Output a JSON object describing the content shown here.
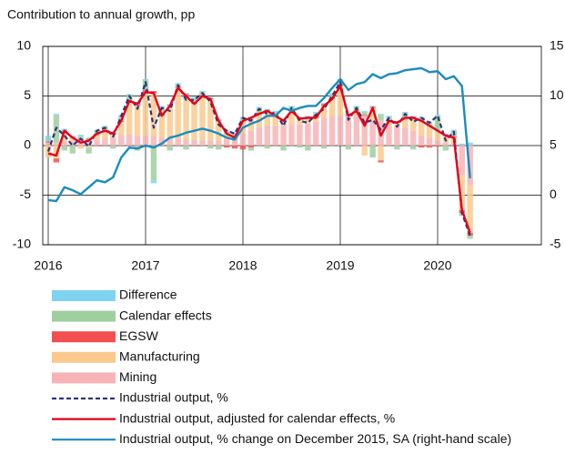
{
  "chart_data": {
    "type": "bar",
    "title": "Contribution to annual growth, pp",
    "categories": [
      "2016",
      null,
      null,
      null,
      null,
      null,
      null,
      null,
      null,
      null,
      null,
      null,
      "2017",
      null,
      null,
      null,
      null,
      null,
      null,
      null,
      null,
      null,
      null,
      null,
      "2018",
      null,
      null,
      null,
      null,
      null,
      null,
      null,
      null,
      null,
      null,
      null,
      "2019",
      null,
      null,
      null,
      null,
      null,
      null,
      null,
      null,
      null,
      null,
      null,
      "2020",
      null,
      null,
      null,
      null,
      null,
      null,
      null,
      null,
      null,
      null,
      null
    ],
    "ylim": [
      -10,
      10
    ],
    "yticks": [
      -10,
      -5,
      0,
      5,
      10
    ],
    "y2lim": [
      -5,
      15
    ],
    "y2ticks": [
      -5,
      0,
      5,
      10,
      15
    ],
    "grid": true,
    "series": [
      {
        "name": "Difference",
        "type": "bar",
        "color": "#7fd3f0",
        "values": [
          0.4,
          0.1,
          0.2,
          0.1,
          0.1,
          0.1,
          0.1,
          0.1,
          0.1,
          0.1,
          0.1,
          0.2,
          0.1,
          -0.3,
          0.1,
          0.1,
          0.1,
          0.1,
          0.1,
          0.1,
          0.1,
          0.1,
          0.1,
          0.1,
          0.1,
          0.1,
          0.1,
          0.1,
          0.1,
          0.1,
          0.1,
          0.1,
          0.1,
          0.1,
          0.1,
          0.1,
          0.1,
          0.1,
          0.1,
          0.1,
          0.1,
          0.1,
          0.1,
          0.1,
          0.1,
          0.1,
          0.1,
          0.1,
          0.1,
          0.1,
          0.1,
          0.2,
          0.3,
          null,
          null,
          null,
          null,
          null,
          null,
          null
        ]
      },
      {
        "name": "Calendar effects",
        "type": "bar",
        "color": "#9fcf9f",
        "values": [
          0.2,
          2.8,
          -0.5,
          -0.8,
          0.4,
          -0.6,
          0.3,
          0.3,
          -0.3,
          0.5,
          0.5,
          -0.5,
          1.0,
          -3.5,
          0.8,
          -0.5,
          0.3,
          -0.4,
          0.4,
          0.3,
          -0.3,
          -0.4,
          0.3,
          0.4,
          0.3,
          -0.3,
          0.5,
          -0.3,
          0.3,
          -0.5,
          0.3,
          -0.2,
          -0.5,
          0.3,
          -0.3,
          0.3,
          0.4,
          -0.4,
          0.3,
          0.3,
          -1.2,
          0.6,
          0.3,
          -0.4,
          0.4,
          -0.4,
          0.3,
          0.3,
          1.5,
          -0.5,
          0.6,
          -0.3,
          -0.3,
          null,
          null,
          null,
          null,
          null,
          null,
          null
        ]
      },
      {
        "name": "EGSW",
        "type": "bar",
        "color": "#f25050",
        "values": [
          0.1,
          -0.4,
          0.1,
          0.1,
          0.1,
          0.1,
          0.1,
          0.2,
          0.2,
          0.1,
          0.2,
          0.2,
          0.2,
          0.2,
          0.1,
          0.1,
          0.1,
          0.2,
          0.2,
          0.1,
          0.1,
          0.1,
          -0.2,
          -0.3,
          -0.4,
          -0.2,
          0.1,
          0.1,
          0.1,
          0.1,
          0.1,
          0.1,
          0.1,
          0.2,
          0.2,
          0.2,
          0.2,
          0.1,
          0.1,
          0.1,
          0.1,
          -0.2,
          0.1,
          0.1,
          0.1,
          0.1,
          -0.2,
          -0.2,
          -0.1,
          0.1,
          0.1,
          -0.3,
          -0.3,
          null,
          null,
          null,
          null,
          null,
          null,
          null
        ]
      },
      {
        "name": "Manufacturing",
        "type": "bar",
        "color": "#fbc98c",
        "values": [
          -1.2,
          -1.3,
          1.0,
          0.3,
          -0.3,
          -0.2,
          0.5,
          0.7,
          0.3,
          1.4,
          3.3,
          3.0,
          4.4,
          4.3,
          2.2,
          3.2,
          5.1,
          4.4,
          3.6,
          4.5,
          4.2,
          2.0,
          0.6,
          0.0,
          1.3,
          1.3,
          1.4,
          1.5,
          1.0,
          0.5,
          1.4,
          0.6,
          0.6,
          0.4,
          1.2,
          1.7,
          3.0,
          0.0,
          0.5,
          -1.0,
          1.3,
          -1.5,
          0.5,
          0.3,
          1.0,
          1.3,
          1.5,
          1.2,
          1.0,
          0.7,
          0.6,
          -3.5,
          -4.8,
          null,
          null,
          null,
          null,
          null,
          null,
          null
        ]
      },
      {
        "name": "Mining",
        "type": "bar",
        "color": "#f7b3b5",
        "values": [
          0.3,
          0.3,
          0.4,
          0.5,
          0.5,
          0.6,
          0.6,
          0.7,
          0.8,
          1.0,
          1.1,
          1.0,
          1.0,
          1.0,
          0.8,
          0.8,
          0.7,
          0.6,
          0.6,
          0.5,
          0.5,
          0.5,
          0.6,
          0.8,
          1.2,
          1.5,
          1.8,
          2.0,
          2.0,
          2.0,
          2.1,
          2.1,
          2.2,
          2.4,
          2.8,
          3.0,
          3.0,
          3.0,
          3.0,
          3.0,
          2.5,
          2.5,
          2.0,
          2.0,
          1.8,
          1.5,
          1.0,
          0.8,
          0.5,
          0.3,
          0.2,
          -3.0,
          -4.0,
          null,
          null,
          null,
          null,
          null,
          null,
          null
        ]
      },
      {
        "name": "Industrial output, %",
        "type": "line",
        "dash": true,
        "color": "#2b3580",
        "values": [
          -0.6,
          1.8,
          1.0,
          0.0,
          0.7,
          -0.1,
          1.5,
          1.8,
          0.9,
          3.0,
          5.0,
          3.7,
          6.4,
          1.8,
          3.8,
          3.5,
          6.1,
          4.6,
          4.6,
          5.3,
          4.4,
          2.1,
          1.5,
          1.2,
          2.8,
          2.5,
          3.7,
          3.2,
          3.3,
          2.0,
          3.8,
          2.5,
          2.3,
          3.1,
          3.7,
          5.0,
          6.4,
          2.6,
          3.8,
          2.3,
          2.6,
          1.6,
          2.8,
          1.9,
          3.2,
          2.4,
          2.8,
          2.3,
          3.0,
          0.5,
          1.4,
          -6.8,
          -9.1,
          null,
          null,
          null,
          null,
          null,
          null,
          null
        ]
      },
      {
        "name": "Industrial output, adjusted for calendar effects, %",
        "type": "line",
        "color": "#e3001b",
        "values": [
          -0.8,
          -1.0,
          1.5,
          0.8,
          0.3,
          0.5,
          1.2,
          1.5,
          1.2,
          2.5,
          4.5,
          4.2,
          5.4,
          5.3,
          3.0,
          4.0,
          5.8,
          5.0,
          4.2,
          5.0,
          4.7,
          2.5,
          1.2,
          0.8,
          2.5,
          2.8,
          3.2,
          3.5,
          3.0,
          2.5,
          3.5,
          2.7,
          2.8,
          2.8,
          4.0,
          4.7,
          6.0,
          3.0,
          3.5,
          2.0,
          3.8,
          1.0,
          2.5,
          2.3,
          2.8,
          2.8,
          2.5,
          2.0,
          1.5,
          1.0,
          0.8,
          -6.5,
          -8.8,
          null,
          null,
          null,
          null,
          null,
          null,
          null
        ]
      },
      {
        "name": "Industrial output, % change on December 2015, SA (right-hand scale)",
        "type": "line",
        "axis": "y2",
        "color": "#1a8cbf",
        "values": [
          -0.5,
          -0.6,
          0.8,
          0.5,
          0.1,
          0.8,
          1.5,
          1.3,
          1.8,
          3.8,
          4.8,
          4.7,
          5.0,
          4.8,
          5.2,
          5.8,
          6.0,
          6.3,
          6.5,
          6.7,
          6.5,
          6.2,
          5.8,
          5.6,
          6.8,
          7.2,
          7.5,
          8.0,
          8.0,
          8.8,
          8.5,
          8.8,
          9.0,
          9.0,
          9.8,
          10.8,
          11.7,
          10.6,
          11.2,
          11.4,
          12.2,
          11.8,
          12.2,
          12.3,
          12.6,
          12.7,
          12.8,
          12.4,
          12.5,
          11.7,
          12.0,
          11.0,
          1.7,
          null,
          null,
          null,
          null,
          null,
          null,
          null
        ]
      }
    ]
  }
}
